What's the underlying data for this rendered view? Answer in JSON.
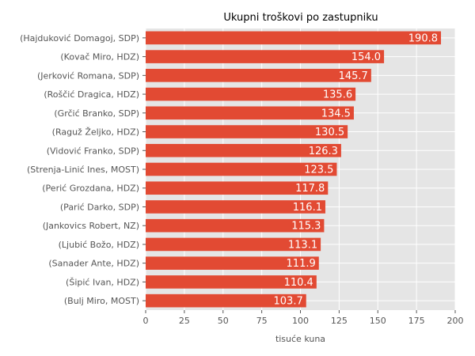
{
  "chart_data": {
    "type": "bar",
    "orientation": "horizontal",
    "title": "Ukupni troškovi po zastupniku",
    "xlabel": "tisuće kuna",
    "ylabel": "",
    "xlim": [
      0,
      200
    ],
    "xticks": [
      0,
      25,
      50,
      75,
      100,
      125,
      150,
      175,
      200
    ],
    "grid": true,
    "categories": [
      "(Hajduković Domagoj, SDP)",
      "(Kovač Miro, HDZ)",
      "(Jerković Romana, SDP)",
      "(Roščić Dragica, HDZ)",
      "(Grčić Branko, SDP)",
      "(Raguž Željko, HDZ)",
      "(Vidović Franko, SDP)",
      "(Strenja-Linić Ines, MOST)",
      "(Perić Grozdana, HDZ)",
      "(Parić Darko, SDP)",
      "(Jankovics Robert, NZ)",
      "(Ljubić Božo, HDZ)",
      "(Sanader Ante, HDZ)",
      "(Šipić Ivan, HDZ)",
      "(Bulj Miro, MOST)"
    ],
    "values": [
      190.8,
      154.0,
      145.7,
      135.6,
      134.5,
      130.5,
      126.3,
      123.5,
      117.8,
      116.1,
      115.3,
      113.1,
      111.9,
      110.4,
      103.7
    ],
    "value_labels": [
      "190.8",
      "154.0",
      "145.7",
      "135.6",
      "134.5",
      "130.5",
      "126.3",
      "123.5",
      "117.8",
      "116.1",
      "115.3",
      "113.1",
      "111.9",
      "110.4",
      "103.7"
    ],
    "colors": {
      "bar": "#E24A33",
      "plot_background": "#E5E5E5",
      "grid": "#FFFFFF",
      "tick_text": "#555555",
      "data_label_text": "#FFFFFF"
    }
  }
}
